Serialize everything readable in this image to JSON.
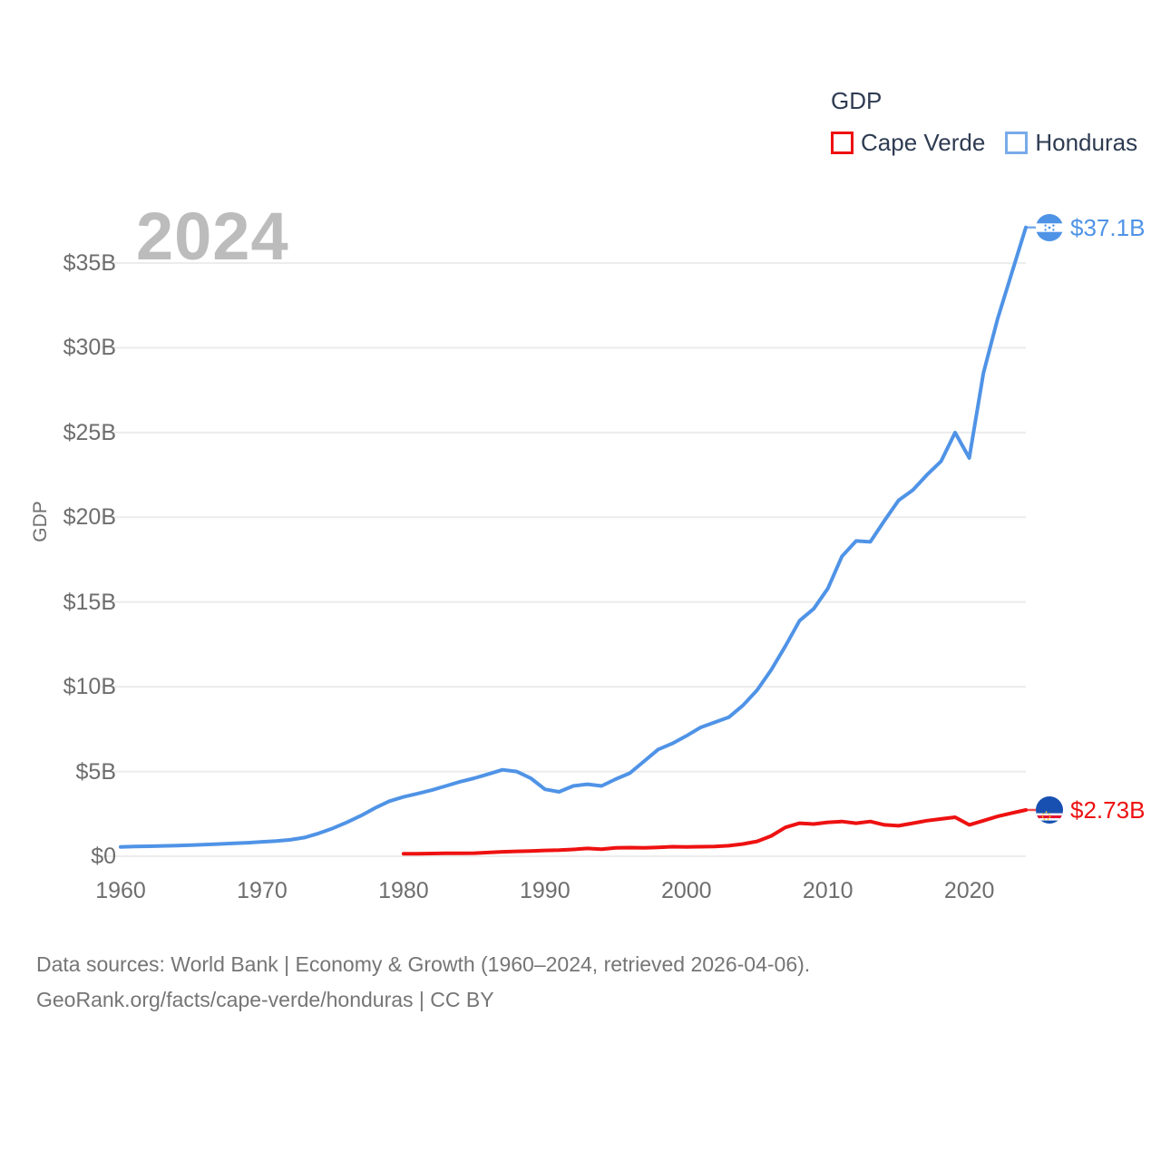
{
  "page": {
    "background": "#ffffff"
  },
  "watermark": {
    "text": "2024",
    "color": "#bcbcbc"
  },
  "legend": {
    "title": "GDP",
    "items": [
      {
        "label": "Cape Verde",
        "swatch_color": "#ee1111"
      },
      {
        "label": "Honduras",
        "swatch_color": "#78abe9"
      }
    ]
  },
  "y_axis": {
    "title": "GDP",
    "ticks": [
      {
        "label": "$35B",
        "value": 35
      },
      {
        "label": "$30B",
        "value": 30
      },
      {
        "label": "$25B",
        "value": 25
      },
      {
        "label": "$20B",
        "value": 20
      },
      {
        "label": "$15B",
        "value": 15
      },
      {
        "label": "$10B",
        "value": 10
      },
      {
        "label": "$5B",
        "value": 5
      },
      {
        "label": "$0",
        "value": 0
      }
    ]
  },
  "x_axis": {
    "ticks": [
      {
        "label": "1960",
        "value": 1960
      },
      {
        "label": "1970",
        "value": 1970
      },
      {
        "label": "1980",
        "value": 1980
      },
      {
        "label": "1990",
        "value": 1990
      },
      {
        "label": "2000",
        "value": 2000
      },
      {
        "label": "2010",
        "value": 2010
      },
      {
        "label": "2020",
        "value": 2020
      }
    ]
  },
  "end_labels": {
    "honduras": {
      "text": "$37.1B",
      "color": "#4f93e6",
      "flag": "honduras-flag"
    },
    "cape_verde": {
      "text": "$2.73B",
      "color": "#ee1111",
      "flag": "cape-verde-flag"
    }
  },
  "footer": {
    "line1": "Data sources: World Bank | Economy & Growth (1960–2024, retrieved 2026-04-06).",
    "line2": "GeoRank.org/facts/cape-verde/honduras | CC BY"
  },
  "chart_data": {
    "type": "line",
    "title": "GDP",
    "unit": "USD billions, current",
    "x_range": [
      1960,
      2024
    ],
    "ylim": [
      0,
      37.5
    ],
    "grid": "horizontal",
    "legend_position": "top-right",
    "watermark_year": "2024",
    "series": [
      {
        "name": "Cape Verde",
        "color": "#ee1111",
        "start_year": 1980,
        "end_value_label": "$2.73B",
        "values": [
          0.15,
          0.15,
          0.16,
          0.17,
          0.17,
          0.18,
          0.22,
          0.26,
          0.29,
          0.31,
          0.34,
          0.36,
          0.4,
          0.46,
          0.42,
          0.5,
          0.51,
          0.49,
          0.52,
          0.56,
          0.55,
          0.56,
          0.58,
          0.62,
          0.72,
          0.88,
          1.2,
          1.7,
          1.95,
          1.9,
          2.0,
          2.05,
          1.95,
          2.05,
          1.85,
          1.8,
          1.95,
          2.1,
          2.2,
          2.3,
          1.85,
          2.1,
          2.35,
          2.55,
          2.73
        ]
      },
      {
        "name": "Honduras",
        "color": "#4f93e6",
        "start_year": 1960,
        "end_value_label": "$37.1B",
        "values": [
          0.55,
          0.57,
          0.59,
          0.61,
          0.63,
          0.66,
          0.69,
          0.72,
          0.76,
          0.8,
          0.85,
          0.9,
          0.97,
          1.1,
          1.35,
          1.65,
          2.0,
          2.4,
          2.85,
          3.25,
          3.5,
          3.7,
          3.9,
          4.15,
          4.4,
          4.6,
          4.85,
          5.1,
          5.0,
          4.6,
          3.95,
          3.8,
          4.15,
          4.25,
          4.15,
          4.55,
          4.9,
          5.6,
          6.3,
          6.65,
          7.1,
          7.6,
          7.9,
          8.2,
          8.9,
          9.8,
          11.0,
          12.4,
          13.9,
          14.6,
          15.8,
          17.7,
          18.6,
          18.55,
          19.8,
          21.0,
          21.6,
          22.5,
          23.3,
          25.0,
          23.5,
          28.5,
          31.7,
          34.4,
          37.1
        ]
      }
    ]
  }
}
